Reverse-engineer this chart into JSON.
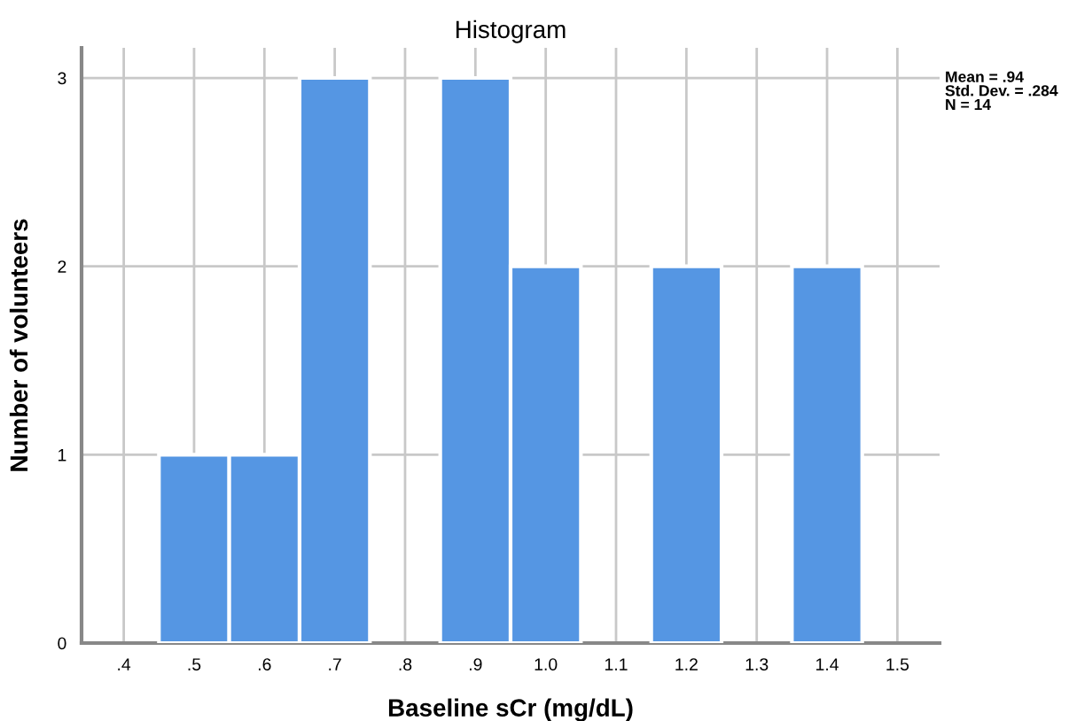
{
  "chart_data": {
    "type": "histogram",
    "title": "Histogram",
    "xlabel": "Baseline sCr (mg/dL)",
    "ylabel": "Number of volunteers",
    "bins": [
      0.45,
      0.55,
      0.65,
      0.75,
      0.85,
      0.95,
      1.05,
      1.15,
      1.25,
      1.35,
      1.45
    ],
    "values": [
      1,
      1,
      3,
      0,
      3,
      2,
      0,
      2,
      0,
      2
    ],
    "color": "#5596e3",
    "xlim": [
      0.34,
      1.56
    ],
    "ylim": [
      0,
      3.16
    ],
    "xticks": [
      {
        "value": 0.4,
        "label": ".4"
      },
      {
        "value": 0.5,
        "label": ".5"
      },
      {
        "value": 0.6,
        "label": ".6"
      },
      {
        "value": 0.7,
        "label": ".7"
      },
      {
        "value": 0.8,
        "label": ".8"
      },
      {
        "value": 0.9,
        "label": ".9"
      },
      {
        "value": 1.0,
        "label": "1.0"
      },
      {
        "value": 1.1,
        "label": "1.1"
      },
      {
        "value": 1.2,
        "label": "1.2"
      },
      {
        "value": 1.3,
        "label": "1.3"
      },
      {
        "value": 1.4,
        "label": "1.4"
      },
      {
        "value": 1.5,
        "label": "1.5"
      }
    ],
    "yticks": [
      0,
      1,
      2,
      3
    ],
    "grid": true,
    "annotations": [
      "Mean = .94\nStd. Dev. = .284\nN = 14"
    ]
  }
}
